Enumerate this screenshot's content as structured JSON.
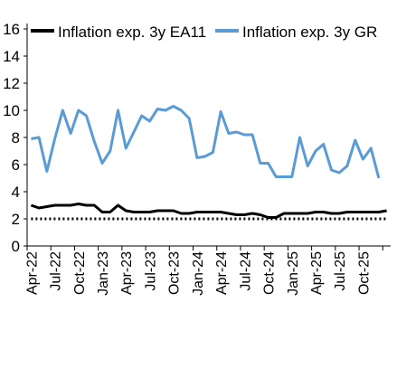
{
  "chart_data": {
    "type": "line",
    "legend_position": "top",
    "grid": false,
    "ylim": [
      0,
      16
    ],
    "yticks": [
      "0",
      "2",
      "4",
      "6",
      "8",
      "10",
      "12",
      "14",
      "16"
    ],
    "x_tick_labels": [
      "Apr-22",
      "Jul-22",
      "Oct-22",
      "Jan-23",
      "Apr-23",
      "Jul-23",
      "Oct-23",
      "Jan-24",
      "Apr-24",
      "Jul-24",
      "Oct-24",
      "Jan-25",
      "Apr-25",
      "Jul-25",
      "Oct-25"
    ],
    "x_tick_every": 3,
    "series": [
      {
        "name": "Inflation exp. 3y EA11",
        "color": "#000000",
        "values": [
          3.0,
          2.8,
          2.9,
          3.0,
          3.0,
          3.0,
          3.1,
          3.0,
          3.0,
          2.5,
          2.5,
          3.0,
          2.6,
          2.5,
          2.5,
          2.5,
          2.6,
          2.6,
          2.6,
          2.4,
          2.4,
          2.5,
          2.5,
          2.5,
          2.5,
          2.4,
          2.3,
          2.3,
          2.4,
          2.3,
          2.1,
          2.1,
          2.4,
          2.4,
          2.4,
          2.4,
          2.5,
          2.5,
          2.4,
          2.4,
          2.5,
          2.5,
          2.5,
          2.5,
          2.5,
          2.6
        ]
      },
      {
        "name": "Inflation exp. 3y GR",
        "color": "#5b9bd5",
        "values": [
          7.9,
          8.0,
          5.5,
          7.9,
          10.0,
          8.3,
          10.0,
          9.6,
          7.7,
          6.1,
          7.0,
          10.0,
          7.2,
          8.4,
          9.6,
          9.2,
          10.1,
          10.0,
          10.3,
          10.0,
          9.4,
          6.5,
          6.6,
          6.9,
          9.9,
          8.3,
          8.4,
          8.2,
          8.2,
          6.1,
          6.1,
          5.1,
          5.1,
          5.1,
          8.0,
          5.9,
          7.0,
          7.5,
          5.6,
          5.4,
          5.9,
          7.8,
          6.4,
          7.2,
          5.0
        ]
      },
      {
        "name": "",
        "color": "#000000",
        "style": "dotted",
        "values": [
          2.0,
          2.0,
          2.0,
          2.0,
          2.0,
          2.0,
          2.0,
          2.0,
          2.0,
          2.0,
          2.0,
          2.0,
          2.0,
          2.0,
          2.0,
          2.0,
          2.0,
          2.0,
          2.0,
          2.0,
          2.0,
          2.0,
          2.0,
          2.0,
          2.0,
          2.0,
          2.0,
          2.0,
          2.0,
          2.0,
          2.0,
          2.0,
          2.0,
          2.0,
          2.0,
          2.0,
          2.0,
          2.0,
          2.0,
          2.0,
          2.0,
          2.0,
          2.0,
          2.0,
          2.0,
          2.0
        ]
      }
    ]
  }
}
